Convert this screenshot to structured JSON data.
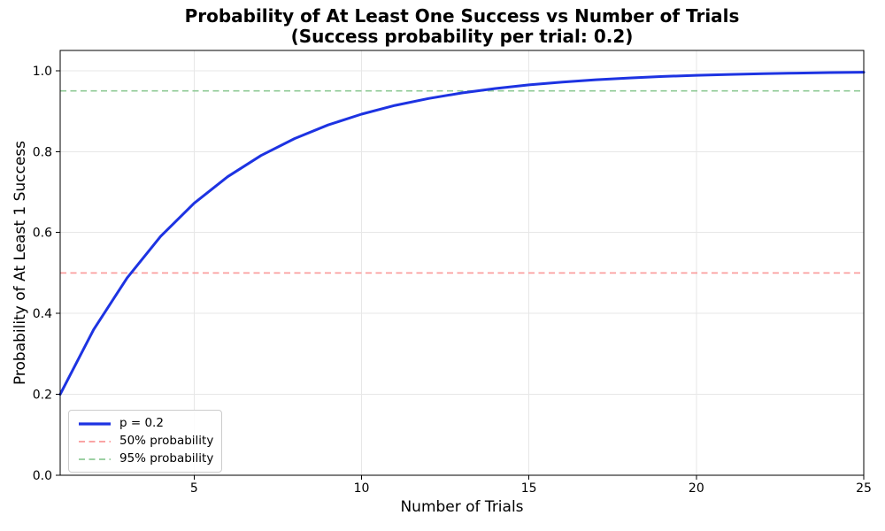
{
  "chart_data": {
    "type": "line",
    "title": "Probability of At Least One Success vs Number of Trials",
    "subtitle": "(Success probability per trial: 0.2)",
    "xlabel": "Number of Trials",
    "ylabel": "Probability of At Least 1 Success",
    "p_per_trial": 0.2,
    "xlim": [
      1,
      25
    ],
    "ylim": [
      0,
      1.05
    ],
    "xticks": [
      5,
      10,
      15,
      20,
      25
    ],
    "xtick_labels": [
      "5",
      "10",
      "15",
      "20",
      "25"
    ],
    "yticks": [
      0.0,
      0.2,
      0.4,
      0.6,
      0.8,
      1.0
    ],
    "ytick_labels": [
      "0.0",
      "0.2",
      "0.4",
      "0.6",
      "0.8",
      "1.0"
    ],
    "grid": true,
    "grid_color": "#e7e7e7",
    "spine_color": "#000000",
    "legend_position": "lower left",
    "series": [
      {
        "name": "p = 0.2",
        "kind": "curve",
        "color": "#1d33e2",
        "linestyle": "solid",
        "linewidth": 3,
        "x": [
          1,
          2,
          3,
          4,
          5,
          6,
          7,
          8,
          9,
          10,
          11,
          12,
          13,
          14,
          15,
          16,
          17,
          18,
          19,
          20,
          21,
          22,
          23,
          24,
          25
        ],
        "y": [
          0.2,
          0.36,
          0.488,
          0.5904,
          0.6723,
          0.7379,
          0.7903,
          0.8322,
          0.8658,
          0.8926,
          0.9141,
          0.9313,
          0.945,
          0.956,
          0.9648,
          0.9719,
          0.9775,
          0.982,
          0.9856,
          0.9885,
          0.9908,
          0.9926,
          0.9941,
          0.9953,
          0.9962
        ]
      },
      {
        "name": "50% probability",
        "kind": "hline",
        "color": "#fa9898",
        "linestyle": "dashed",
        "linewidth": 1.6,
        "y_const": 0.5
      },
      {
        "name": "95% probability",
        "kind": "hline",
        "color": "#8fca96",
        "linestyle": "dashed",
        "linewidth": 1.6,
        "y_const": 0.95
      }
    ]
  }
}
